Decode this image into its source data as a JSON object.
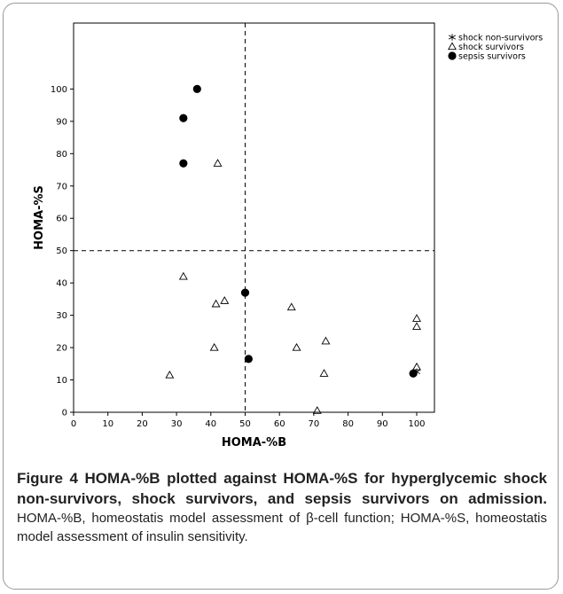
{
  "chart_data": {
    "type": "scatter",
    "xlabel": "HOMA-%B",
    "ylabel": "HOMA-%S",
    "xlim": [
      0,
      105
    ],
    "ylim": [
      0,
      105
    ],
    "xticks": [
      0,
      10,
      20,
      30,
      40,
      50,
      60,
      70,
      80,
      90,
      100
    ],
    "yticks": [
      0,
      10,
      20,
      30,
      40,
      50,
      60,
      70,
      80,
      90,
      100
    ],
    "reference_lines": {
      "x": 50,
      "y": 50,
      "style": "dashed"
    },
    "grid": false,
    "legend_position": "top-right",
    "series": [
      {
        "name": "shock non-survivors",
        "marker": "star",
        "points": [
          [
            100,
            12.5
          ]
        ]
      },
      {
        "name": "shock survivors",
        "marker": "triangle-open",
        "points": [
          [
            28,
            11.5
          ],
          [
            32,
            42
          ],
          [
            41,
            20
          ],
          [
            41.5,
            33.5
          ],
          [
            42,
            77
          ],
          [
            44,
            34.5
          ],
          [
            63.5,
            32.5
          ],
          [
            65,
            20
          ],
          [
            71,
            0.5
          ],
          [
            73,
            12
          ],
          [
            73.5,
            22
          ],
          [
            100,
            29
          ],
          [
            100,
            26.5
          ],
          [
            100,
            14
          ]
        ]
      },
      {
        "name": "sepsis survivors",
        "marker": "circle-filled",
        "points": [
          [
            32,
            91
          ],
          [
            32,
            77
          ],
          [
            36,
            100
          ],
          [
            50,
            37
          ],
          [
            51,
            16.5
          ],
          [
            99,
            12
          ]
        ]
      }
    ]
  },
  "caption": {
    "heading": "Figure 4 HOMA-%B plotted against HOMA-%S for hyperglycemic shock non-survivors, shock survivors, and sepsis survivors on admission",
    "heading_end": ".",
    "body_part1": " HOMA-%B, homeostatis model assessment of ",
    "beta_symbol": "β",
    "body_part2": "-cell function; HOMA-%S, homeostatis model assessment of insulin sensitivity."
  },
  "colors": {
    "marker": "#000000",
    "axis": "#000000",
    "text": "#222222"
  }
}
